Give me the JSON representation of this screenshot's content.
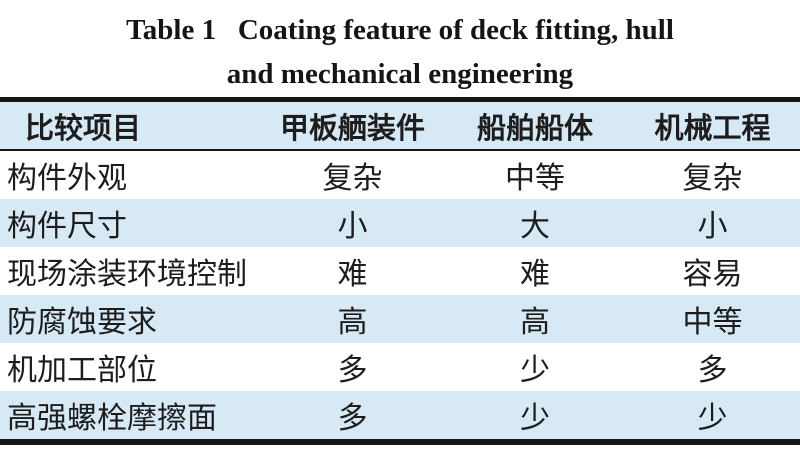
{
  "caption": {
    "line1": "Table 1   Coating feature of deck fitting, hull",
    "line2": "and mechanical engineering"
  },
  "table": {
    "header": [
      "比较项目",
      "甲板舾装件",
      "船舶船体",
      "机械工程"
    ],
    "rows": [
      {
        "label": "构件外观",
        "values": [
          "复杂",
          "中等",
          "复杂"
        ]
      },
      {
        "label": "构件尺寸",
        "values": [
          "小",
          "大",
          "小"
        ]
      },
      {
        "label": "现场涂装环境控制",
        "values": [
          "难",
          "难",
          "容易"
        ]
      },
      {
        "label": "防腐蚀要求",
        "values": [
          "高",
          "高",
          "中等"
        ]
      },
      {
        "label": "机加工部位",
        "values": [
          "多",
          "少",
          "多"
        ]
      },
      {
        "label": "高强螺栓摩擦面",
        "values": [
          "多",
          "少",
          "少"
        ]
      }
    ],
    "colors": {
      "stripe": "#d7e9f4",
      "rule": "#161616",
      "text": "#1d1d1d"
    }
  }
}
